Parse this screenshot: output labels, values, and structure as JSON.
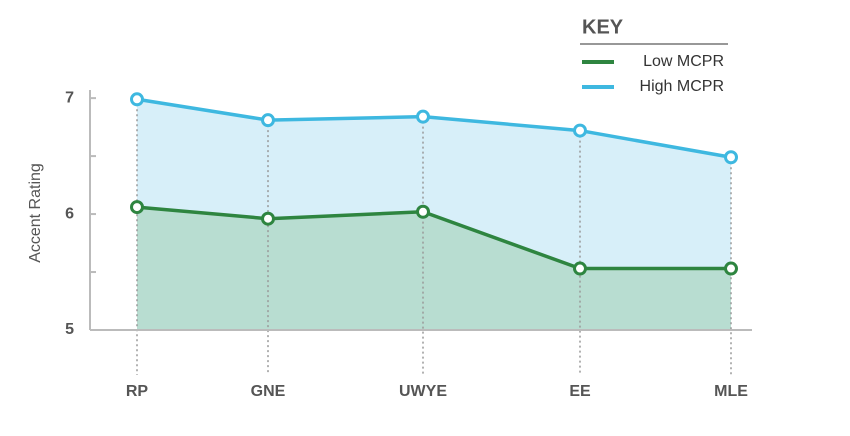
{
  "chart_data": {
    "type": "area",
    "y_label": "Accent Rating",
    "legend_title": "KEY",
    "categories": [
      "RP",
      "GNE",
      "UWYE",
      "EE",
      "MLE"
    ],
    "series": [
      {
        "name": "Low MCPR",
        "color": "#2e8540",
        "fill": "#b8ddd1",
        "values": [
          6.06,
          5.96,
          6.02,
          5.53,
          5.53
        ]
      },
      {
        "name": "High MCPR",
        "color": "#3eb8e0",
        "fill": "#d7eff9",
        "values": [
          6.99,
          6.81,
          6.84,
          6.72,
          6.49
        ]
      }
    ],
    "ylim": [
      5,
      7.07
    ],
    "yticks": [
      5,
      6,
      7
    ],
    "yminorticks": [
      5.5,
      6.5
    ],
    "legend": "top-right"
  }
}
